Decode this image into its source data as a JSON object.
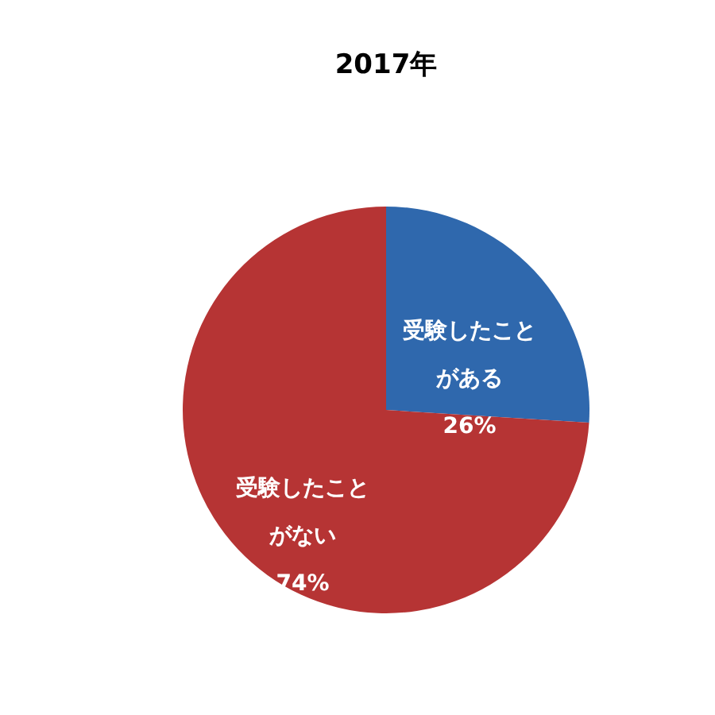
{
  "chart_data": {
    "type": "pie",
    "title": "2017年",
    "categories": [
      "受験したことがある",
      "受験したことがない"
    ],
    "values": [
      26,
      74
    ],
    "value_labels": [
      "26%",
      "74%"
    ],
    "colors": [
      "#2f68ad",
      "#b63434"
    ],
    "legend": false
  }
}
